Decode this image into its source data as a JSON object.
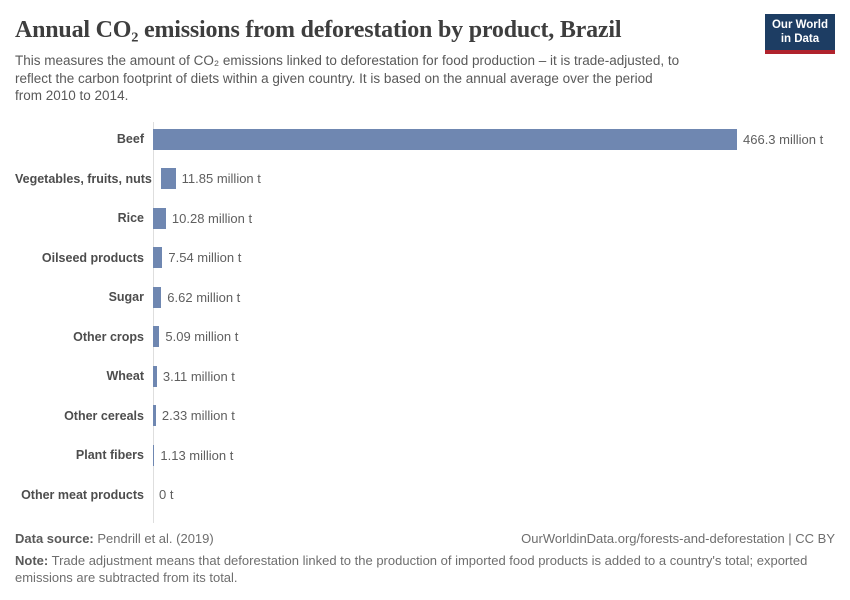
{
  "header": {
    "title": "Annual CO₂ emissions from deforestation by product, Brazil",
    "subtitle_lines": [
      "This measures the amount of CO₂ emissions linked to deforestation for food production – it is trade-adjusted, to",
      "reflect the carbon footprint of diets within a given country. It is based on the annual average over the period",
      "from 2010 to 2014."
    ],
    "logo": {
      "line1": "Our World",
      "line2": "in Data"
    }
  },
  "chart_data": {
    "type": "bar",
    "orientation": "horizontal",
    "title": "Annual CO₂ emissions from deforestation by product, Brazil",
    "categories": [
      "Beef",
      "Vegetables, fruits, nuts",
      "Rice",
      "Oilseed products",
      "Sugar",
      "Other crops",
      "Wheat",
      "Other cereals",
      "Plant fibers",
      "Other meat products"
    ],
    "values": [
      466.3,
      11.85,
      10.28,
      7.54,
      6.62,
      5.09,
      3.11,
      2.33,
      1.13,
      0
    ],
    "value_labels": [
      "466.3 million t",
      "11.85 million t",
      "10.28 million t",
      "7.54 million t",
      "6.62 million t",
      "5.09 million t",
      "3.11 million t",
      "2.33 million t",
      "1.13 million t",
      "0 t"
    ],
    "unit": "million t",
    "xlim": [
      0,
      466.3
    ],
    "grid": false,
    "legend": "none"
  },
  "footer": {
    "datasource_label": "Data source:",
    "datasource_value": "Pendrill et al. (2019)",
    "license_text": "OurWorldinData.org/forests-and-deforestation | CC BY",
    "note_label": "Note:",
    "note_lines": [
      "Trade adjustment means that deforestation linked to the production of imported food products is added to a country's total; exported",
      "emissions are subtracted from its total."
    ]
  },
  "colors": {
    "bar": "#6f87b1",
    "title": "#3e3e3e",
    "subtitle": "#595959",
    "label": "#4d4d4d",
    "value": "#5f5f5f",
    "axis": "#dedede",
    "footer": "#6e6e6e",
    "footerBold": "#5a5a5a",
    "logoBg": "#1d3d63",
    "logoStripe": "#b0232d"
  }
}
